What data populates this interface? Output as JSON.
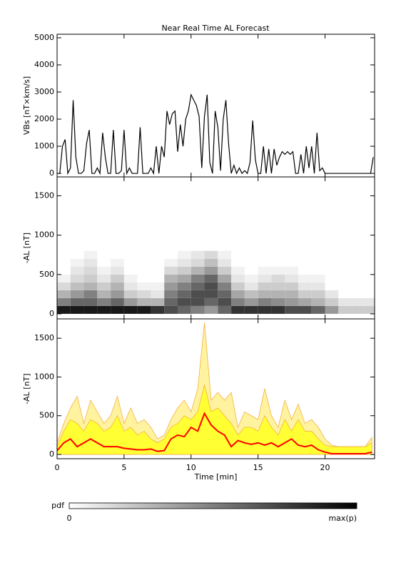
{
  "chart_data": [
    {
      "type": "line",
      "title": "Near Real Time AL Forecast",
      "ylabel": "VBs [nT×km/s]",
      "ylim": [
        -130,
        5130
      ],
      "yticks": [
        0,
        1000,
        2000,
        3000,
        4000,
        5000
      ],
      "xlim": [
        0,
        23.7
      ],
      "xticks": [
        0,
        5,
        10,
        15,
        20
      ],
      "xtick_labels": false,
      "x": [
        0,
        0.2,
        0.4,
        0.6,
        0.8,
        1.0,
        1.2,
        1.4,
        1.6,
        1.8,
        2.0,
        2.2,
        2.4,
        2.6,
        2.8,
        3.0,
        3.2,
        3.4,
        3.6,
        3.8,
        4.0,
        4.2,
        4.4,
        4.6,
        4.8,
        5.0,
        5.2,
        5.4,
        5.6,
        5.8,
        6.0,
        6.2,
        6.4,
        6.6,
        6.8,
        7.0,
        7.2,
        7.4,
        7.6,
        7.8,
        8.0,
        8.2,
        8.4,
        8.6,
        8.8,
        9.0,
        9.2,
        9.4,
        9.6,
        9.8,
        10.0,
        10.2,
        10.4,
        10.6,
        10.8,
        11.0,
        11.2,
        11.4,
        11.6,
        11.8,
        12.0,
        12.2,
        12.4,
        12.6,
        12.8,
        13.0,
        13.2,
        13.4,
        13.6,
        13.8,
        14.0,
        14.2,
        14.4,
        14.6,
        14.8,
        15.0,
        15.2,
        15.4,
        15.6,
        15.8,
        16.0,
        16.2,
        16.4,
        16.6,
        16.8,
        17.0,
        17.2,
        17.4,
        17.6,
        17.8,
        18.0,
        18.2,
        18.4,
        18.6,
        18.8,
        19.0,
        19.2,
        19.4,
        19.6,
        19.8,
        20.0,
        21,
        22,
        23,
        23.4,
        23.6
      ],
      "series": [
        {
          "color": "#000000",
          "values": [
            0,
            0,
            1000,
            1250,
            0,
            200,
            2700,
            600,
            0,
            0,
            100,
            1100,
            1600,
            0,
            0,
            200,
            0,
            1500,
            600,
            0,
            0,
            1600,
            0,
            0,
            100,
            1600,
            0,
            200,
            0,
            0,
            0,
            1700,
            0,
            0,
            0,
            200,
            0,
            1000,
            0,
            1000,
            600,
            2300,
            1800,
            2200,
            2300,
            800,
            1800,
            1000,
            2000,
            2300,
            2900,
            2700,
            2500,
            2100,
            200,
            2100,
            2900,
            400,
            0,
            2300,
            1700,
            100,
            2000,
            2700,
            1100,
            0,
            300,
            0,
            200,
            0,
            100,
            0,
            400,
            1950,
            500,
            0,
            0,
            1000,
            0,
            900,
            0,
            900,
            300,
            600,
            800,
            700,
            800,
            700,
            800,
            0,
            0,
            700,
            0,
            1000,
            200,
            1000,
            0,
            1500,
            100,
            200,
            0,
            0,
            0,
            0,
            0,
            600
          ]
        }
      ]
    },
    {
      "type": "heatmap",
      "ylabel": "-AL [nT]",
      "ylim": [
        -64,
        1740
      ],
      "yticks": [
        0,
        500,
        1000,
        1500
      ],
      "xlim": [
        0,
        23.7
      ],
      "xticks": [
        0,
        5,
        10,
        15,
        20
      ],
      "xtick_labels": false,
      "xbins": [
        0,
        1,
        2,
        3,
        4,
        5,
        6,
        7,
        8,
        9,
        10,
        11,
        12,
        13,
        14,
        15,
        16,
        17,
        18,
        19,
        20,
        21,
        22,
        23,
        24
      ],
      "ybins": [
        0,
        100,
        200,
        300,
        400,
        500,
        600,
        700,
        800
      ],
      "z": [
        [
          0.9,
          0.5,
          0.3,
          0.15,
          0.05,
          0,
          0,
          0
        ],
        [
          0.9,
          0.6,
          0.4,
          0.25,
          0.15,
          0.1,
          0.05,
          0
        ],
        [
          0.9,
          0.6,
          0.5,
          0.3,
          0.2,
          0.15,
          0.1,
          0.05
        ],
        [
          0.9,
          0.5,
          0.3,
          0.2,
          0.1,
          0.05,
          0,
          0
        ],
        [
          0.9,
          0.6,
          0.4,
          0.3,
          0.2,
          0.1,
          0.05,
          0
        ],
        [
          0.9,
          0.4,
          0.2,
          0.1,
          0.05,
          0,
          0,
          0
        ],
        [
          0.9,
          0.3,
          0.15,
          0.05,
          0,
          0,
          0,
          0
        ],
        [
          0.8,
          0.3,
          0.1,
          0.05,
          0,
          0,
          0,
          0
        ],
        [
          0.7,
          0.6,
          0.5,
          0.4,
          0.3,
          0.15,
          0.05,
          0
        ],
        [
          0.6,
          0.7,
          0.6,
          0.5,
          0.35,
          0.2,
          0.1,
          0.05
        ],
        [
          0.5,
          0.7,
          0.7,
          0.6,
          0.5,
          0.3,
          0.15,
          0.1
        ],
        [
          0.4,
          0.6,
          0.7,
          0.7,
          0.6,
          0.4,
          0.25,
          0.15
        ],
        [
          0.6,
          0.7,
          0.6,
          0.5,
          0.35,
          0.2,
          0.1,
          0.05
        ],
        [
          0.8,
          0.5,
          0.35,
          0.2,
          0.1,
          0.05,
          0,
          0
        ],
        [
          0.8,
          0.4,
          0.25,
          0.1,
          0.05,
          0,
          0,
          0
        ],
        [
          0.8,
          0.5,
          0.3,
          0.2,
          0.1,
          0.05,
          0,
          0
        ],
        [
          0.8,
          0.45,
          0.3,
          0.2,
          0.15,
          0.05,
          0,
          0
        ],
        [
          0.7,
          0.4,
          0.3,
          0.2,
          0.1,
          0.05,
          0,
          0
        ],
        [
          0.7,
          0.35,
          0.2,
          0.1,
          0.05,
          0,
          0,
          0
        ],
        [
          0.6,
          0.3,
          0.2,
          0.1,
          0.05,
          0,
          0,
          0
        ],
        [
          0.4,
          0.2,
          0.1,
          0,
          0,
          0,
          0,
          0
        ],
        [
          0.2,
          0.1,
          0,
          0,
          0,
          0,
          0,
          0
        ],
        [
          0.2,
          0.1,
          0,
          0,
          0,
          0,
          0,
          0
        ],
        [
          0.2,
          0.1,
          0,
          0,
          0,
          0,
          0,
          0
        ]
      ]
    },
    {
      "type": "area",
      "ylabel": "-AL [nT]",
      "xlabel": "Time [min]",
      "ylim": [
        -55,
        1750
      ],
      "yticks": [
        0,
        500,
        1000,
        1500
      ],
      "xlim": [
        0,
        23.7
      ],
      "xticks": [
        0,
        5,
        10,
        15,
        20
      ],
      "xtick_labels": true,
      "x": [
        0,
        0.5,
        1,
        1.5,
        2,
        2.5,
        3,
        3.5,
        4,
        4.5,
        5,
        5.5,
        6,
        6.5,
        7,
        7.5,
        8,
        8.5,
        9,
        9.5,
        10,
        10.5,
        11,
        11.5,
        12,
        12.5,
        13,
        13.5,
        14,
        14.5,
        15,
        15.5,
        16,
        16.5,
        17,
        17.5,
        18,
        18.5,
        19,
        19.5,
        20,
        20.5,
        21,
        21.5,
        22,
        22.5,
        23,
        23.5
      ],
      "series": [
        {
          "style": "area",
          "color": "#fff3a0",
          "edge": "#f5b040",
          "values": [
            150,
            400,
            600,
            750,
            400,
            700,
            550,
            400,
            500,
            750,
            400,
            600,
            400,
            450,
            350,
            200,
            250,
            450,
            600,
            700,
            550,
            850,
            1700,
            700,
            800,
            700,
            800,
            350,
            550,
            500,
            450,
            850,
            500,
            350,
            700,
            450,
            650,
            400,
            450,
            350,
            200,
            120,
            100,
            100,
            100,
            100,
            100,
            220
          ]
        },
        {
          "style": "area",
          "color": "#ffff33",
          "edge": "#f5b040",
          "values": [
            100,
            300,
            450,
            400,
            300,
            450,
            400,
            300,
            350,
            500,
            300,
            350,
            250,
            300,
            200,
            150,
            200,
            350,
            400,
            500,
            450,
            550,
            900,
            550,
            600,
            500,
            400,
            250,
            350,
            350,
            300,
            500,
            350,
            250,
            450,
            300,
            450,
            300,
            300,
            200,
            120,
            100,
            100,
            100,
            100,
            100,
            100,
            150
          ]
        },
        {
          "style": "line",
          "color": "#ff0000",
          "values": [
            50,
            150,
            200,
            100,
            150,
            200,
            150,
            100,
            100,
            100,
            80,
            70,
            60,
            60,
            70,
            40,
            50,
            200,
            250,
            230,
            350,
            300,
            530,
            380,
            300,
            250,
            100,
            180,
            150,
            130,
            150,
            120,
            150,
            100,
            150,
            200,
            120,
            100,
            120,
            60,
            30,
            10,
            10,
            10,
            10,
            10,
            10,
            30
          ]
        }
      ]
    }
  ],
  "colorbar": {
    "label": "pdf",
    "ticks": [
      0,
      {
        "value": 1,
        "label": "max(p)"
      }
    ]
  }
}
